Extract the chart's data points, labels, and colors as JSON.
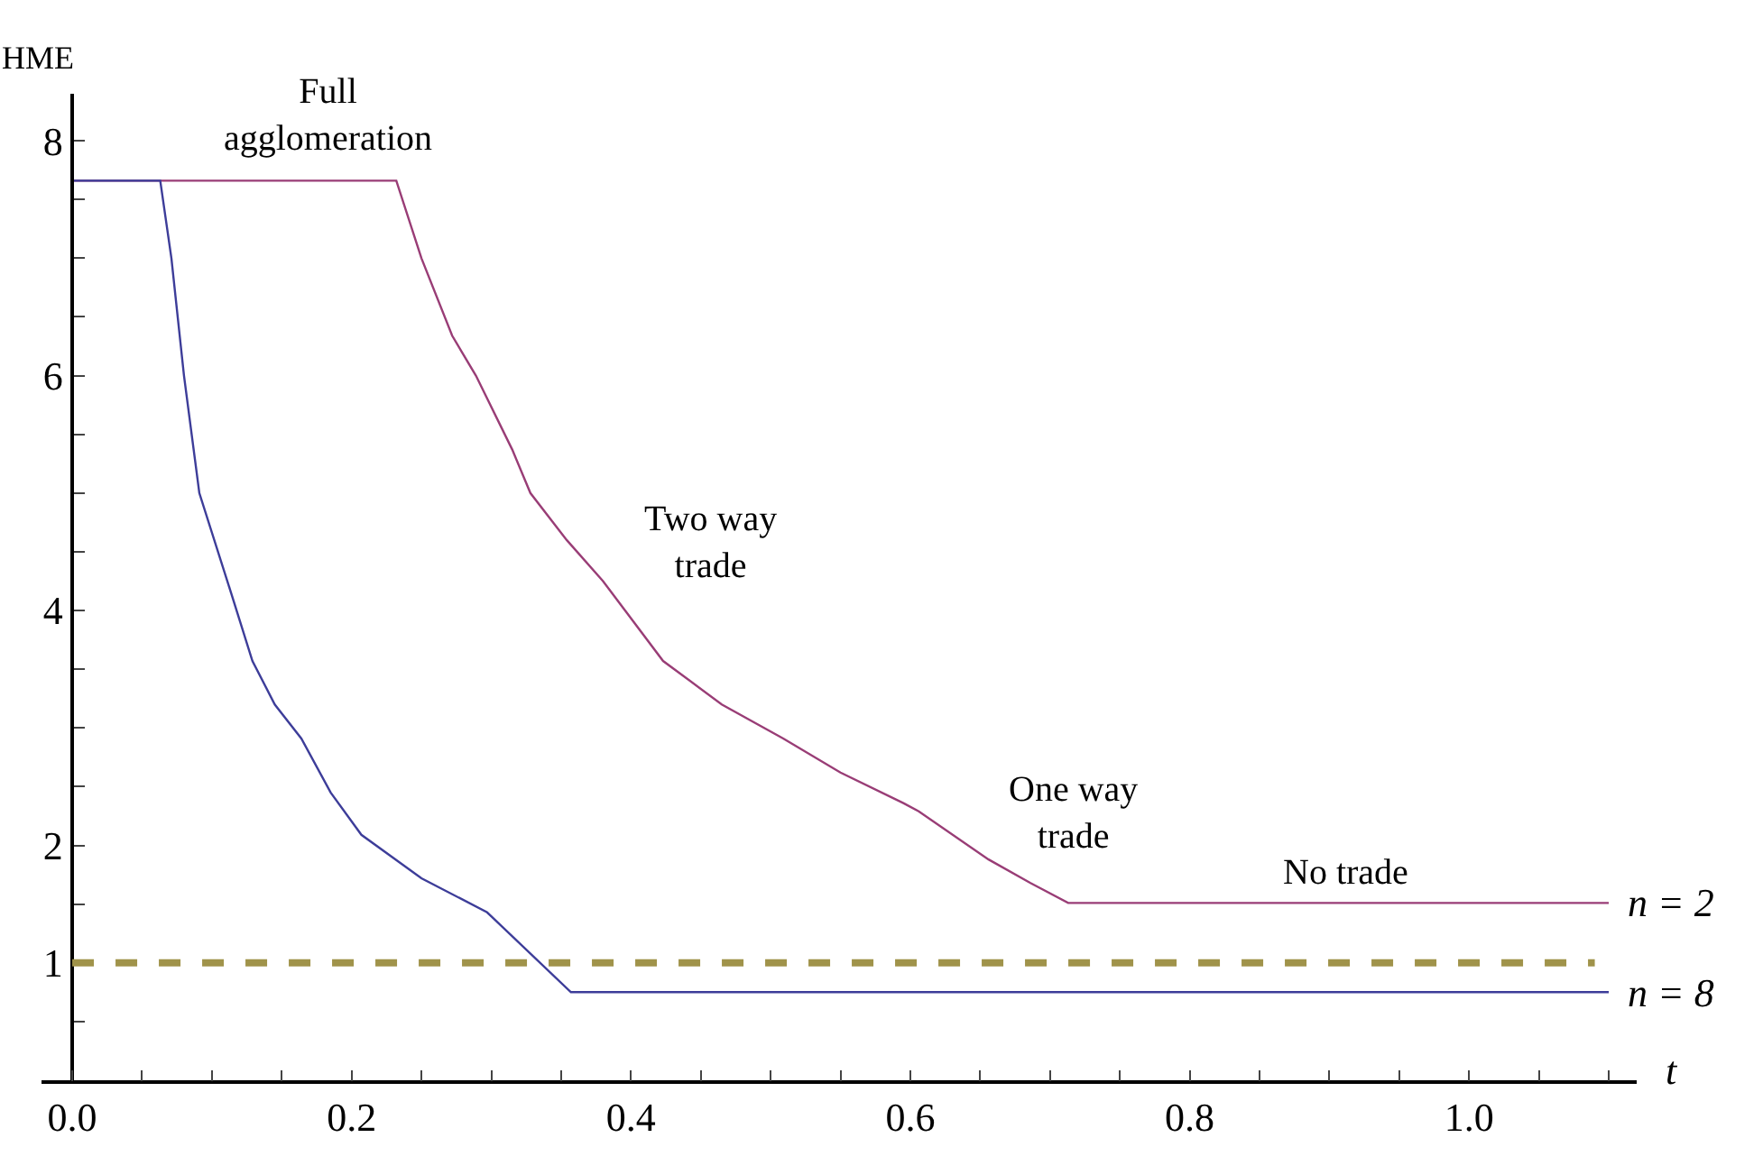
{
  "chart_data": {
    "type": "line",
    "xlabel": "t",
    "ylabel": "HME",
    "xlim": [
      -0.022,
      1.12
    ],
    "ylim": [
      0,
      8.4
    ],
    "xticks": [
      {
        "value": 0,
        "label": "0.0"
      },
      {
        "value": 0.05,
        "label": null
      },
      {
        "value": 0.1,
        "label": null
      },
      {
        "value": 0.15,
        "label": null
      },
      {
        "value": 0.2,
        "label": "0.2"
      },
      {
        "value": 0.25,
        "label": null
      },
      {
        "value": 0.3,
        "label": null
      },
      {
        "value": 0.35,
        "label": null
      },
      {
        "value": 0.4,
        "label": "0.4"
      },
      {
        "value": 0.45,
        "label": null
      },
      {
        "value": 0.5,
        "label": null
      },
      {
        "value": 0.55,
        "label": null
      },
      {
        "value": 0.6,
        "label": "0.6"
      },
      {
        "value": 0.65,
        "label": null
      },
      {
        "value": 0.7,
        "label": null
      },
      {
        "value": 0.75,
        "label": null
      },
      {
        "value": 0.8,
        "label": "0.8"
      },
      {
        "value": 0.85,
        "label": null
      },
      {
        "value": 0.9,
        "label": null
      },
      {
        "value": 0.95,
        "label": null
      },
      {
        "value": 1,
        "label": "1.0"
      },
      {
        "value": 1.05,
        "label": null
      },
      {
        "value": 1.1,
        "label": null
      }
    ],
    "yticks": [
      {
        "value": 0.5,
        "label": null
      },
      1,
      {
        "value": 1.5,
        "label": null
      },
      2,
      {
        "value": 2.5,
        "label": null
      },
      {
        "value": 3,
        "label": null
      },
      {
        "value": 3.5,
        "label": null
      },
      4,
      {
        "value": 4.5,
        "label": null
      },
      {
        "value": 5,
        "label": null
      },
      {
        "value": 5.5,
        "label": null
      },
      6,
      {
        "value": 6.5,
        "label": null
      },
      {
        "value": 7,
        "label": null
      },
      {
        "value": 7.5,
        "label": null
      },
      8
    ],
    "grid": false,
    "legend": false,
    "marker": "none",
    "line_style": "solid",
    "series": [
      {
        "name": "n = 2",
        "color": "#993d76",
        "x": [
          0,
          0.232,
          0.25,
          0.272,
          0.289,
          0.315,
          0.328,
          0.354,
          0.38,
          0.423,
          0.465,
          0.509,
          0.55,
          0.595,
          0.606,
          0.656,
          0.686,
          0.713,
          1.1
        ],
        "values": [
          7.66,
          7.66,
          7.0,
          6.34,
          6.0,
          5.37,
          5.0,
          4.6,
          4.25,
          3.57,
          3.2,
          2.91,
          2.62,
          2.36,
          2.29,
          1.88,
          1.68,
          1.51,
          1.51
        ]
      },
      {
        "name": "n = 8",
        "color": "#3d3d99",
        "x": [
          0,
          0.063,
          0.071,
          0.08,
          0.091,
          0.114,
          0.129,
          0.145,
          0.164,
          0.185,
          0.207,
          0.25,
          0.297,
          0.357,
          1.1
        ],
        "values": [
          7.66,
          7.66,
          7.0,
          6.0,
          5.0,
          4.14,
          3.57,
          3.2,
          2.91,
          2.45,
          2.09,
          1.72,
          1.43,
          0.75,
          0.75
        ]
      }
    ],
    "ref_lines": [
      {
        "axis": "y",
        "value": 1,
        "color": "#a0934a",
        "line_style": "dashed"
      }
    ],
    "annotations": [
      "Full\nagglomeration",
      "Two way\ntrade",
      "One way\ntrade",
      "No trade"
    ]
  }
}
